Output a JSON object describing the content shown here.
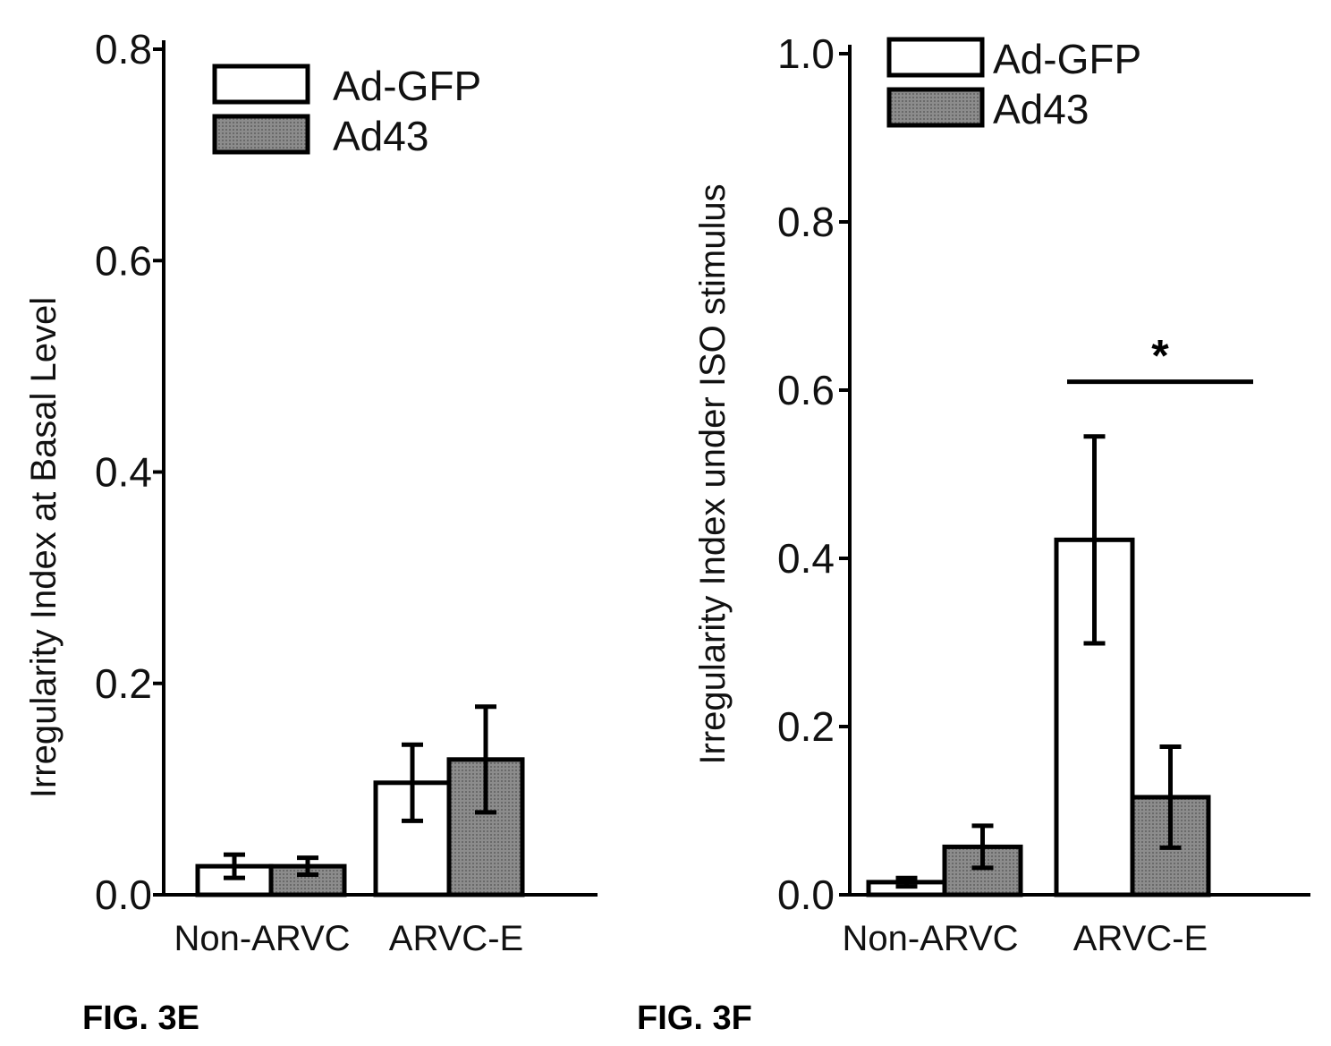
{
  "chart_data": [
    {
      "type": "bar",
      "figure_label": "FIG. 3E",
      "ylabel": "Irregularity Index at Basal Level",
      "xlabel": "",
      "ylim": [
        0,
        0.8
      ],
      "yticks": [
        "0.0",
        "0.2",
        "0.4",
        "0.6",
        "0.8"
      ],
      "ytick_values": [
        0,
        0.2,
        0.4,
        0.6,
        0.8
      ],
      "categories": [
        "Non-ARVC",
        "ARVC-E"
      ],
      "legend_position": "top-left",
      "series": [
        {
          "name": "Ad-GFP",
          "color": "#ffffff",
          "values": [
            0.027,
            0.106
          ],
          "errors": [
            0.011,
            0.036
          ]
        },
        {
          "name": "Ad43",
          "color": "#8a8a8a",
          "values": [
            0.027,
            0.128
          ],
          "errors": [
            0.008,
            0.05
          ]
        }
      ],
      "significance": []
    },
    {
      "type": "bar",
      "figure_label": "FIG. 3F",
      "ylabel": "Irregularity Index under ISO stimulus",
      "xlabel": "",
      "ylim": [
        0,
        1.0
      ],
      "yticks": [
        "0.0",
        "0.2",
        "0.4",
        "0.6",
        "0.8",
        "1.0"
      ],
      "ytick_values": [
        0,
        0.2,
        0.4,
        0.6,
        0.8,
        1.0
      ],
      "categories": [
        "Non-ARVC",
        "ARVC-E"
      ],
      "legend_position": "top-left",
      "series": [
        {
          "name": "Ad-GFP",
          "color": "#ffffff",
          "values": [
            0.015,
            0.422
          ],
          "errors": [
            0.005,
            0.123
          ]
        },
        {
          "name": "Ad43",
          "color": "#8a8a8a",
          "values": [
            0.057,
            0.116
          ],
          "errors": [
            0.025,
            0.06
          ]
        }
      ],
      "significance": [
        {
          "category_index": 1,
          "label": "*",
          "y": 0.61
        }
      ]
    }
  ]
}
